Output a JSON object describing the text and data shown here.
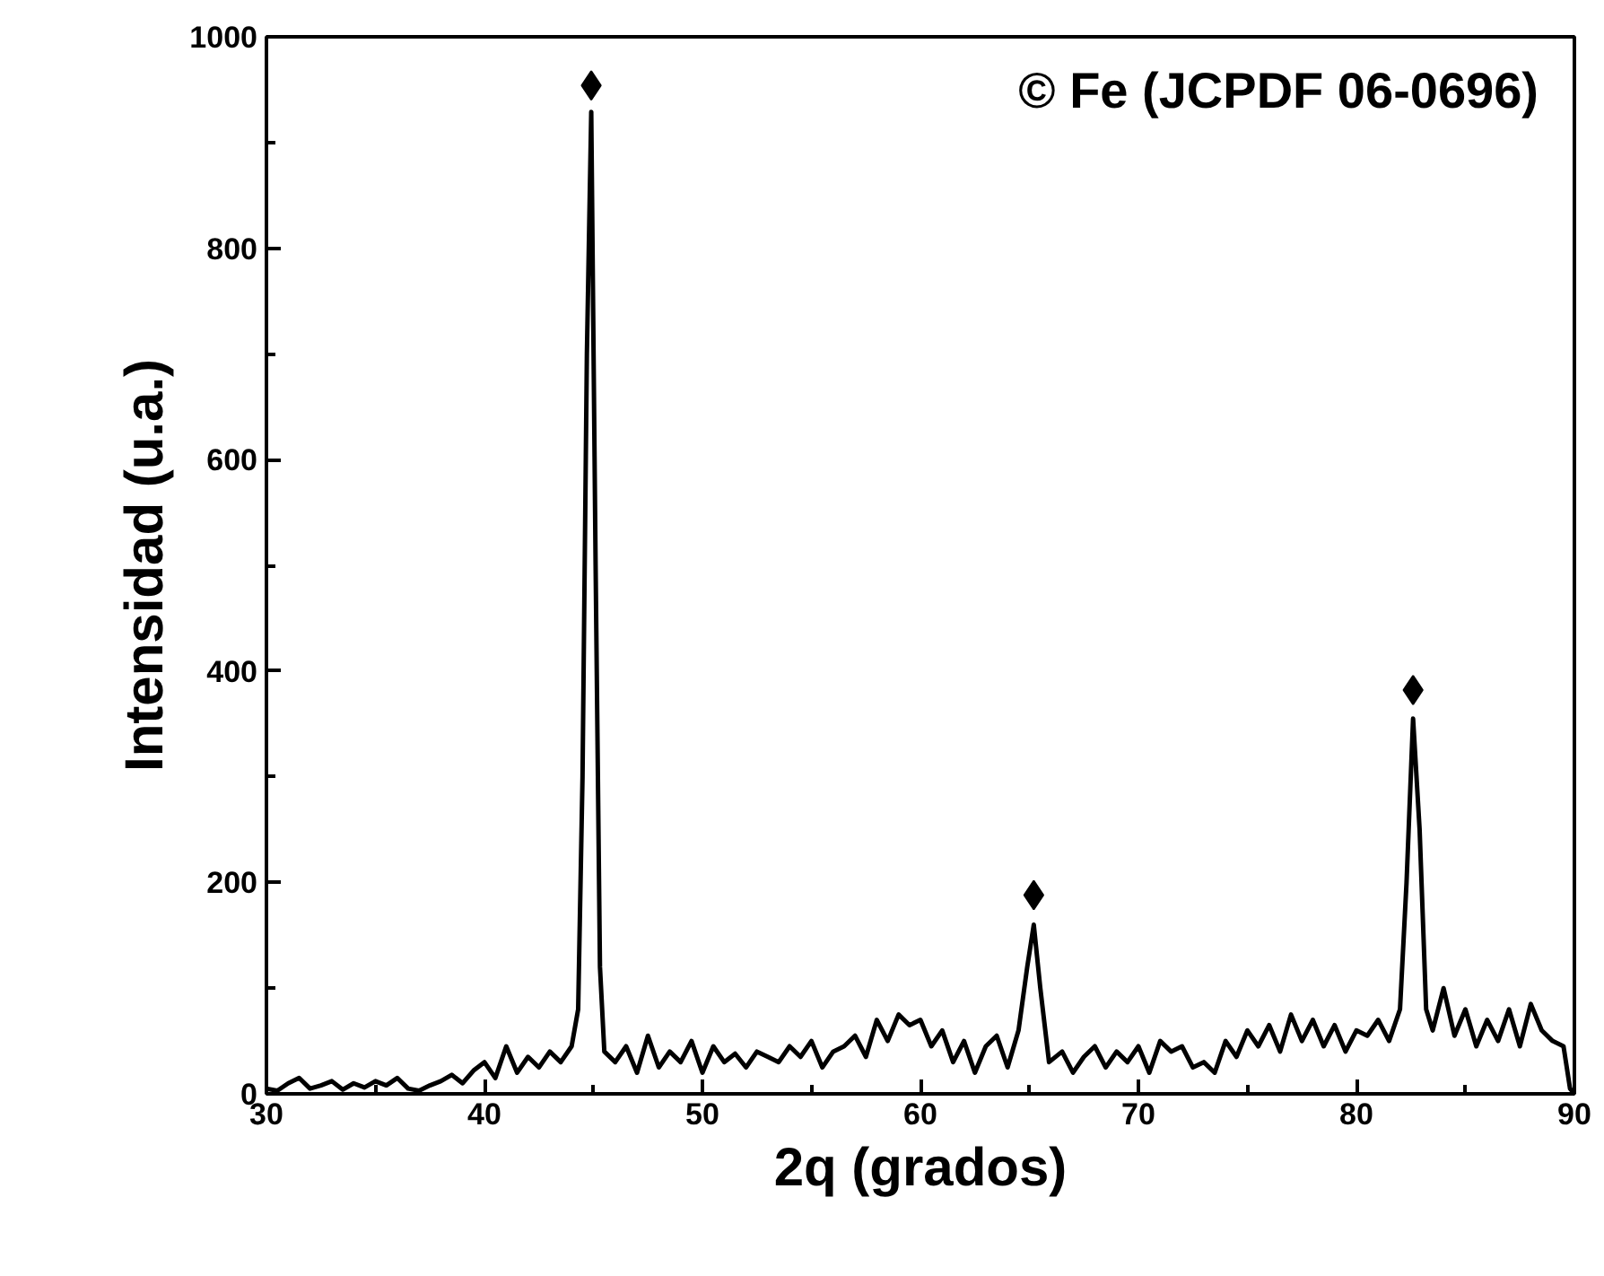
{
  "chart_data": {
    "type": "line",
    "xlabel": "2q (grados)",
    "ylabel": "Intensidad (u.a.)",
    "annotations": [
      "© Fe (JCPDF 06-0696)"
    ],
    "xlim": [
      30,
      90
    ],
    "ylim": [
      0,
      1000
    ],
    "xticks": [
      30,
      {
        "value": 35,
        "label": null
      },
      40,
      {
        "value": 45,
        "label": null
      },
      50,
      {
        "value": 55,
        "label": null
      },
      60,
      {
        "value": 65,
        "label": null
      },
      70,
      {
        "value": 75,
        "label": null
      },
      80,
      {
        "value": 85,
        "label": null
      },
      90
    ],
    "yticks": [
      0,
      {
        "value": 100,
        "label": null
      },
      200,
      {
        "value": 300,
        "label": null
      },
      400,
      {
        "value": 500,
        "label": null
      },
      600,
      {
        "value": 700,
        "label": null
      },
      800,
      {
        "value": 900,
        "label": null
      },
      1000
    ],
    "grid": false,
    "series": [
      {
        "color": "#000000",
        "x": [
          30,
          30.5,
          31,
          31.5,
          32,
          32.5,
          33,
          33.5,
          34,
          34.5,
          35,
          35.5,
          36,
          36.5,
          37,
          37.5,
          38,
          38.5,
          39,
          39.5,
          40,
          40.5,
          41,
          41.5,
          42,
          42.5,
          43,
          43.5,
          44,
          44.3,
          44.5,
          44.7,
          44.9,
          45.1,
          45.3,
          45.5,
          46,
          46.5,
          47,
          47.5,
          48,
          48.5,
          49,
          49.5,
          50,
          50.5,
          51,
          51.5,
          52,
          52.5,
          53,
          53.5,
          54,
          54.5,
          55,
          55.5,
          56,
          56.5,
          57,
          57.5,
          58,
          58.5,
          59,
          59.5,
          60,
          60.5,
          61,
          61.5,
          62,
          62.5,
          63,
          63.5,
          64,
          64.5,
          64.9,
          65.2,
          65.5,
          65.9,
          66.5,
          67,
          67.5,
          68,
          68.5,
          69,
          69.5,
          70,
          70.5,
          71,
          71.5,
          72,
          72.5,
          73,
          73.5,
          74,
          74.5,
          75,
          75.5,
          76,
          76.5,
          77,
          77.5,
          78,
          78.5,
          79,
          79.5,
          80,
          80.5,
          81,
          81.5,
          82,
          82.3,
          82.6,
          82.9,
          83.2,
          83.5,
          84,
          84.5,
          85,
          85.5,
          86,
          86.5,
          87,
          87.5,
          88,
          88.5,
          89,
          89.5,
          89.8,
          90
        ],
        "values": [
          5,
          3,
          10,
          15,
          5,
          8,
          12,
          4,
          10,
          6,
          12,
          8,
          15,
          5,
          3,
          8,
          12,
          18,
          10,
          22,
          30,
          15,
          45,
          20,
          35,
          25,
          40,
          30,
          45,
          80,
          300,
          700,
          929,
          500,
          120,
          40,
          30,
          45,
          20,
          55,
          25,
          40,
          30,
          50,
          20,
          45,
          30,
          38,
          25,
          40,
          35,
          30,
          45,
          35,
          50,
          25,
          40,
          45,
          55,
          35,
          70,
          50,
          75,
          65,
          70,
          45,
          60,
          30,
          50,
          20,
          45,
          55,
          25,
          60,
          120,
          160,
          100,
          30,
          40,
          20,
          35,
          45,
          25,
          40,
          30,
          45,
          20,
          50,
          40,
          45,
          25,
          30,
          20,
          50,
          35,
          60,
          45,
          65,
          40,
          75,
          50,
          70,
          45,
          65,
          40,
          60,
          55,
          70,
          50,
          80,
          200,
          355,
          250,
          80,
          60,
          100,
          55,
          80,
          45,
          70,
          50,
          80,
          45,
          85,
          60,
          50,
          45,
          5,
          0
        ]
      },
      {
        "type": "scatter",
        "marker": "diamond",
        "color": "#000000",
        "x": [
          44.9,
          65.2,
          82.6
        ],
        "values": [
          954,
          188,
          382
        ]
      }
    ]
  }
}
